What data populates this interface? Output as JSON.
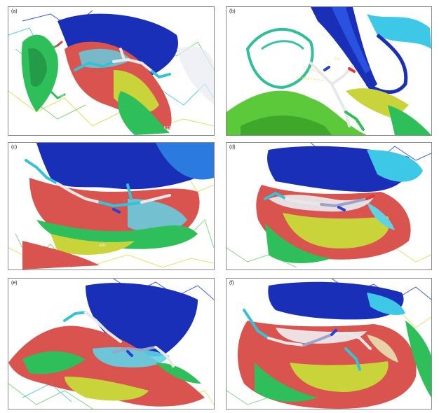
{
  "figure": {
    "panels": [
      {
        "label": "(a)",
        "residues": [
          "Y84",
          "D86",
          "E134"
        ]
      },
      {
        "label": "(b)",
        "residues": [
          "Y83",
          "M85",
          "2.6",
          "3.1"
        ]
      },
      {
        "label": "(c)",
        "residues": [
          "E81"
        ]
      },
      {
        "label": "(d)",
        "residues": []
      },
      {
        "label": "(e)",
        "residues": []
      },
      {
        "label": "(f)",
        "residues": []
      }
    ]
  },
  "colors": {
    "surface_blue": "#1a2fb8",
    "surface_red": "#d9534f",
    "surface_green": "#2fbf5a",
    "surface_yellow": "#c9d43a",
    "surface_cyan": "#5fd3e6",
    "ligand_cyan": "#35c2d6",
    "ligand_white": "#e8e8e8",
    "wire_green": "#6ed36e",
    "wire_yellow": "#d9e04a",
    "wire_blue": "#2340d8"
  }
}
